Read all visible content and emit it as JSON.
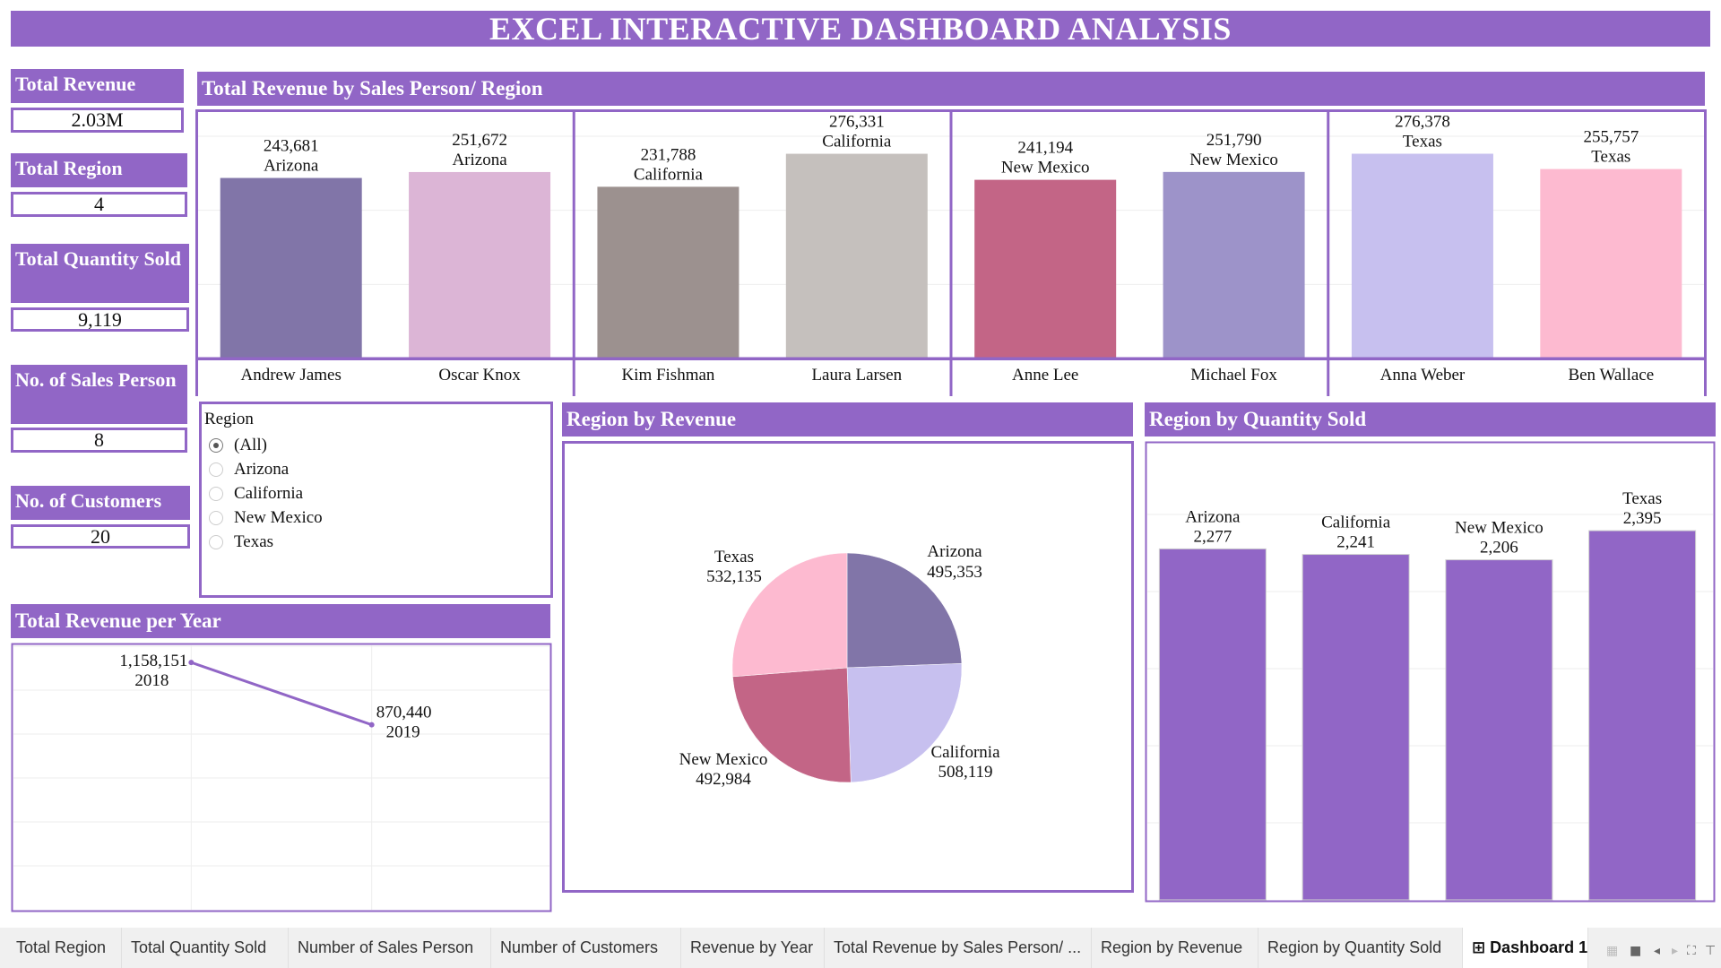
{
  "title": "EXCEL INTERACTIVE DASHBOARD ANALYSIS",
  "kpis": [
    {
      "label": "Total Revenue",
      "value": "2.03M"
    },
    {
      "label": "Total Region",
      "value": "4"
    },
    {
      "label": "Total Quantity Sold",
      "value": "9,119"
    },
    {
      "label": "No. of Sales Person",
      "value": "8"
    },
    {
      "label": "No. of Customers",
      "value": "20"
    }
  ],
  "region_filter": {
    "title": "Region",
    "options": [
      "(All)",
      "Arizona",
      "California",
      "New Mexico",
      "Texas"
    ],
    "selected": "(All)"
  },
  "sections": {
    "sales_person": "Total Revenue by Sales Person/ Region",
    "revenue_per_year": "Total Revenue per Year",
    "region_revenue": "Region by Revenue",
    "region_quantity": "Region by Quantity Sold"
  },
  "colors": {
    "accent": "#9166c6",
    "Andrew James": "#8175a8",
    "Oscar Knox": "#dcb5d6",
    "Kim Fishman": "#9c918f",
    "Laura Larsen": "#c5c0bd",
    "Anne Lee": "#c36586",
    "Michael Fox": "#9d93c9",
    "Anna Weber": "#c7c0ef",
    "Ben Wallace": "#fdbad0",
    "Arizona": "#8175a8",
    "California": "#c7c0ef",
    "New Mexico": "#c36586",
    "Texas": "#fdbad0"
  },
  "chart_data": [
    {
      "id": "sales_person",
      "type": "bar",
      "title": "Total Revenue by Sales Person/ Region",
      "categories": [
        "Andrew James",
        "Oscar Knox",
        "Kim Fishman",
        "Laura Larsen",
        "Anne Lee",
        "Michael Fox",
        "Anna Weber",
        "Ben Wallace"
      ],
      "regions": [
        "Arizona",
        "Arizona",
        "California",
        "California",
        "New Mexico",
        "New Mexico",
        "Texas",
        "Texas"
      ],
      "values": [
        243681,
        251672,
        231788,
        276331,
        241194,
        251790,
        276378,
        255757
      ],
      "value_labels": [
        "243,681",
        "251,672",
        "231,788",
        "276,331",
        "241,194",
        "251,790",
        "276,378",
        "255,757"
      ],
      "ylim": [
        0,
        300000
      ],
      "grid": true
    },
    {
      "id": "revenue_per_year",
      "type": "line",
      "title": "Total Revenue per Year",
      "x": [
        "2018",
        "2019"
      ],
      "values": [
        1158151,
        870440
      ],
      "value_labels": [
        "1,158,151",
        "870,440"
      ],
      "ylim": [
        0,
        1200000
      ],
      "grid": true
    },
    {
      "id": "region_revenue",
      "type": "pie",
      "title": "Region by Revenue",
      "categories": [
        "Arizona",
        "California",
        "New Mexico",
        "Texas"
      ],
      "values": [
        495353,
        508119,
        492984,
        532135
      ],
      "value_labels": [
        "495,353",
        "508,119",
        "492,984",
        "532,135"
      ]
    },
    {
      "id": "region_quantity",
      "type": "bar",
      "title": "Region by Quantity Sold",
      "categories": [
        "Arizona",
        "California",
        "New Mexico",
        "Texas"
      ],
      "values": [
        2277,
        2241,
        2206,
        2395
      ],
      "value_labels": [
        "2,277",
        "2,241",
        "2,206",
        "2,395"
      ],
      "ylim": [
        0,
        2500
      ],
      "grid": true
    }
  ],
  "tabs": [
    {
      "label": "Total Region"
    },
    {
      "label": "Total Quantity Sold"
    },
    {
      "label": "Number of Sales Person"
    },
    {
      "label": "Number of Customers"
    },
    {
      "label": "Revenue by Year"
    },
    {
      "label": "Total Revenue by Sales Person/ ..."
    },
    {
      "label": "Region by Revenue"
    },
    {
      "label": "Region by Quantity Sold"
    },
    {
      "label": "⊞ Dashboard 1",
      "active": true
    }
  ],
  "toolbar_icons": [
    "show-sheet-sorter-icon",
    "show-tabs-icon",
    "previous-sheet-icon",
    "next-sheet-icon",
    "fit-screen-icon",
    "presentation-mode-icon"
  ]
}
